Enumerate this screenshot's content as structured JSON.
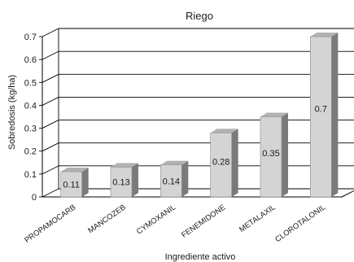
{
  "chart_data": {
    "type": "bar",
    "title": "Riego",
    "xlabel": "Ingrediente activo",
    "ylabel": "Sobredosis (kg/ha)",
    "categories": [
      "PROPAMOCARB",
      "MANCOZEB",
      "CYMOXANIL",
      "FENEMIDONE",
      "METALAXIL",
      "CLOROTALONIL"
    ],
    "values": [
      0.11,
      0.13,
      0.14,
      0.28,
      0.35,
      0.7
    ],
    "data_labels": [
      "0.11",
      "0.13",
      "0.14",
      "0.28",
      "0.35",
      "0.7"
    ],
    "yticks": [
      "0",
      "0.1",
      "0.2",
      "0.3",
      "0.4",
      "0.5",
      "0.6",
      "0.7"
    ],
    "ylim": [
      0,
      0.7
    ],
    "grid": true,
    "style": "3d-bar",
    "colors": {
      "bar_front": "#d4d4d4",
      "bar_side": "#7a7a7a",
      "bar_top": "#b2b2b2",
      "grid": "#000000",
      "wall": "#ffffff"
    }
  }
}
